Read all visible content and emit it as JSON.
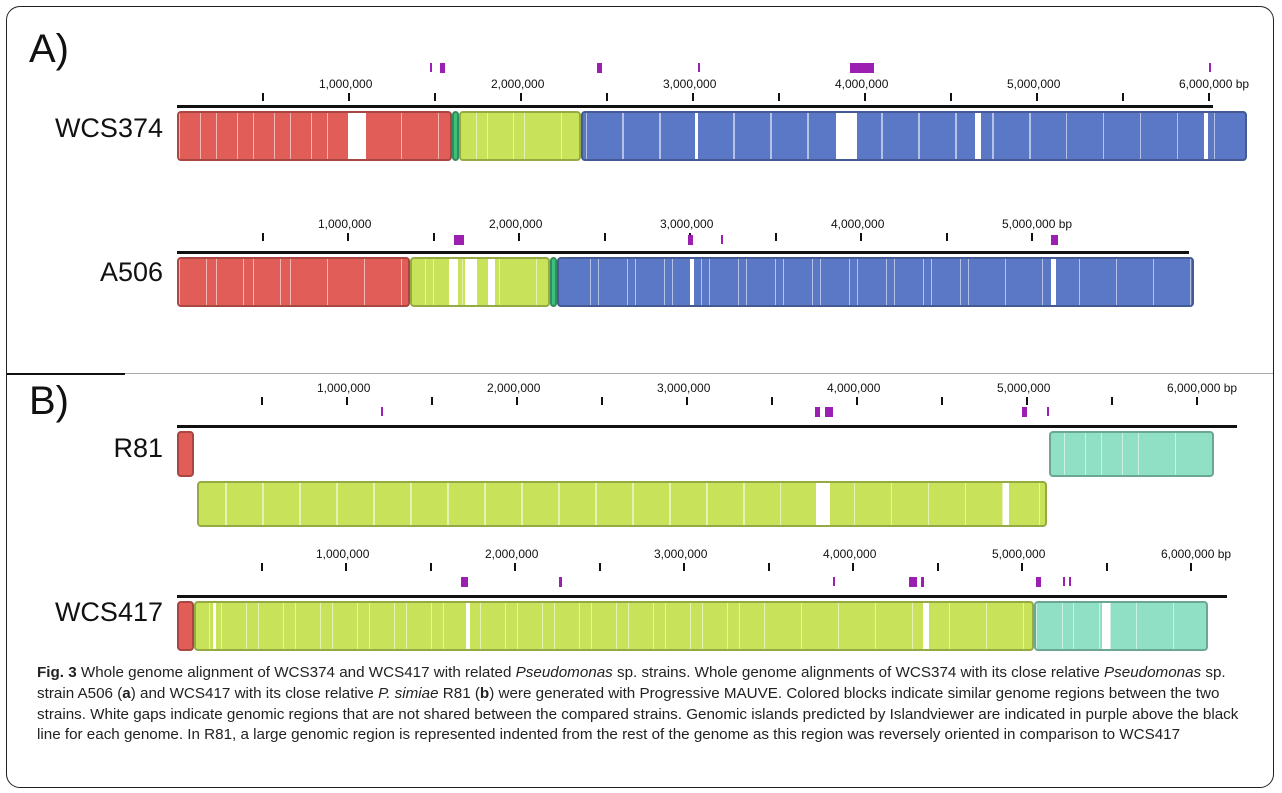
{
  "figure": {
    "panels": [
      {
        "letter": "A)",
        "genomes": [
          {
            "name": "WCS374",
            "tick_labels": [
              "1,000,000",
              "2,000,000",
              "3,000,000",
              "4,000,000",
              "5,000,000",
              "6,000,000 bp"
            ],
            "islands_mbp": [
              [
                1.47,
                1.48
              ],
              [
                1.53,
                1.56
              ],
              [
                2.44,
                2.47
              ],
              [
                3.03,
                3.04
              ],
              [
                3.91,
                4.05
              ],
              [
                6.0,
                6.01
              ]
            ],
            "blocks": [
              {
                "start": 0.0,
                "end": 1.6,
                "color": "#e05d58",
                "gaps": [
                  [
                    0.98,
                    1.09
                  ]
                ]
              },
              {
                "start": 1.6,
                "end": 1.64,
                "color": "#3fbf7a",
                "gaps": []
              },
              {
                "start": 1.64,
                "end": 2.35,
                "color": "#c8e35a",
                "gaps": []
              },
              {
                "start": 2.35,
                "end": 6.22,
                "color": "#5b78c7",
                "gaps": [
                  [
                    3.0,
                    3.02
                  ],
                  [
                    3.82,
                    3.94
                  ],
                  [
                    4.63,
                    4.66
                  ],
                  [
                    5.96,
                    5.98
                  ]
                ]
              }
            ]
          },
          {
            "name": "A506",
            "tick_labels": [
              "1,000,000",
              "2,000,000",
              "3,000,000",
              "4,000,000",
              "5,000,000 bp"
            ],
            "islands_mbp": [
              [
                1.62,
                1.68
              ],
              [
                2.99,
                3.02
              ],
              [
                3.18,
                3.19
              ],
              [
                5.11,
                5.15
              ]
            ],
            "blocks": [
              {
                "start": 0.0,
                "end": 1.36,
                "color": "#e05d58",
                "gaps": []
              },
              {
                "start": 1.36,
                "end": 2.18,
                "color": "#c8e35a",
                "gaps": [
                  [
                    1.58,
                    1.63
                  ],
                  [
                    1.67,
                    1.74
                  ],
                  [
                    1.81,
                    1.85
                  ]
                ]
              },
              {
                "start": 2.18,
                "end": 2.22,
                "color": "#3fbf7a",
                "gaps": []
              },
              {
                "start": 2.22,
                "end": 5.95,
                "color": "#5b78c7",
                "gaps": [
                  [
                    2.99,
                    3.01
                  ],
                  [
                    5.1,
                    5.13
                  ]
                ]
              }
            ]
          }
        ]
      },
      {
        "letter": "B)",
        "genomes": [
          {
            "name": "R81",
            "tick_labels": [
              "1,000,000",
              "2,000,000",
              "3,000,000",
              "4,000,000",
              "5,000,000",
              "6,000,000 bp"
            ],
            "islands_mbp": [
              [
                1.2,
                1.21
              ],
              [
                3.75,
                3.78
              ],
              [
                3.81,
                3.86
              ],
              [
                4.97,
                5.0
              ],
              [
                5.12,
                5.13
              ]
            ],
            "blocks": [
              {
                "start": 0.0,
                "end": 0.1,
                "color": "#e05d58",
                "gaps": [],
                "row": 0
              },
              {
                "start": 5.13,
                "end": 6.1,
                "color": "#8fe0c4",
                "gaps": [],
                "row": 0
              },
              {
                "start": 0.12,
                "end": 5.12,
                "color": "#c8e35a",
                "gaps": [
                  [
                    3.75,
                    3.83
                  ],
                  [
                    4.85,
                    4.88
                  ]
                ],
                "row": 1
              }
            ]
          },
          {
            "name": "WCS417",
            "tick_labels": [
              "1,000,000",
              "2,000,000",
              "3,000,000",
              "4,000,000",
              "5,000,000",
              "6,000,000 bp"
            ],
            "islands_mbp": [
              [
                1.68,
                1.72
              ],
              [
                2.26,
                2.28
              ],
              [
                3.88,
                3.89
              ],
              [
                4.33,
                4.38
              ],
              [
                4.4,
                4.42
              ],
              [
                5.08,
                5.11
              ],
              [
                5.24,
                5.25
              ],
              [
                5.28,
                5.29
              ]
            ],
            "blocks": [
              {
                "start": 0.0,
                "end": 0.1,
                "color": "#e05d58",
                "gaps": []
              },
              {
                "start": 0.1,
                "end": 5.07,
                "color": "#c8e35a",
                "gaps": [
                  [
                    0.2,
                    0.21
                  ],
                  [
                    1.7,
                    1.72
                  ],
                  [
                    4.4,
                    4.44
                  ]
                ]
              },
              {
                "start": 5.07,
                "end": 6.1,
                "color": "#8fe0c4",
                "gaps": [
                  [
                    5.46,
                    5.51
                  ]
                ]
              }
            ]
          }
        ]
      }
    ]
  },
  "caption": {
    "fig_label": "Fig. 3",
    "segments": [
      {
        "t": " Whole genome alignment of WCS374 and WCS417 with related ",
        "s": "n"
      },
      {
        "t": "Pseudomonas",
        "s": "i"
      },
      {
        "t": " sp. strains. Whole genome alignments of WCS374 with its close relative ",
        "s": "n"
      },
      {
        "t": "Pseudomonas",
        "s": "i"
      },
      {
        "t": " sp. strain A506 (",
        "s": "n"
      },
      {
        "t": "a",
        "s": "b"
      },
      {
        "t": ") and WCS417 with its close relative ",
        "s": "n"
      },
      {
        "t": "P. simiae",
        "s": "i"
      },
      {
        "t": " R81 (",
        "s": "n"
      },
      {
        "t": "b",
        "s": "b"
      },
      {
        "t": ") were generated with Progressive MAUVE. Colored blocks indicate similar genome regions between the two strains. White gaps indicate genomic regions that are not shared between the compared strains. Genomic islands predicted by Islandviewer are indicated in purple above the black line for each genome. In R81, a large genomic region is represented indented from the rest of the genome as this region was reversely oriented in comparison to WCS417",
        "s": "n"
      }
    ]
  }
}
